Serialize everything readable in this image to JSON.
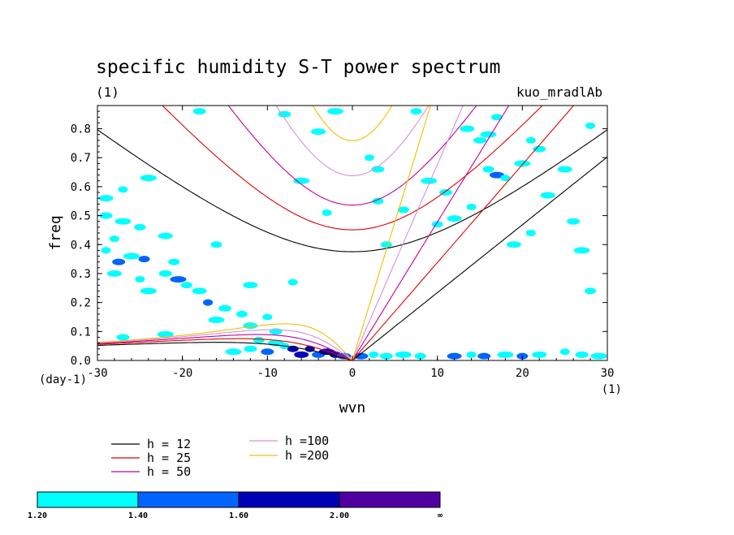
{
  "chart_data": {
    "type": "contour",
    "title": "specific humidity S-T power spectrum",
    "subtitle_left": "(1)",
    "subtitle_right": "kuo_mradlAb",
    "xlabel": "wvn",
    "ylabel": "freq",
    "x_unit": "(1)",
    "y_unit": "(day-1)",
    "xlim": [
      -30,
      30
    ],
    "ylim": [
      0,
      0.88
    ],
    "x_ticks": [
      -30,
      -20,
      -10,
      0,
      10,
      20,
      30
    ],
    "y_ticks": [
      "0.0",
      "0.1",
      "0.2",
      "0.3",
      "0.4",
      "0.5",
      "0.6",
      "0.7",
      "0.8"
    ],
    "dispersion_curves": [
      {
        "label": "h = 12",
        "h": 12,
        "color": "#000000"
      },
      {
        "label": "h = 25",
        "h": 25,
        "color": "#e00000"
      },
      {
        "label": "h = 50",
        "h": 50,
        "color": "#c000a0"
      },
      {
        "label": "h =100",
        "h": 100,
        "color": "#d890e0"
      },
      {
        "label": "h =200",
        "h": 200,
        "color": "#f0c000"
      }
    ],
    "contour_levels": {
      "labels": [
        "1.20",
        "1.40",
        "1.60",
        "2.00",
        "∞"
      ],
      "colors": [
        "#00ffff",
        "#0064ff",
        "#0000b4",
        "#5000a0"
      ]
    },
    "shaded_regions": [
      {
        "x": -29,
        "y": 0.38,
        "level": 0
      },
      {
        "x": -27.5,
        "y": 0.34,
        "level": 1
      },
      {
        "x": -26,
        "y": 0.36,
        "level": 0
      },
      {
        "x": -24.5,
        "y": 0.35,
        "level": 1
      },
      {
        "x": -28,
        "y": 0.3,
        "level": 0
      },
      {
        "x": -25,
        "y": 0.28,
        "level": 0
      },
      {
        "x": -22,
        "y": 0.3,
        "level": 0
      },
      {
        "x": -20.5,
        "y": 0.28,
        "level": 1
      },
      {
        "x": -19.5,
        "y": 0.26,
        "level": 0
      },
      {
        "x": -18,
        "y": 0.24,
        "level": 0
      },
      {
        "x": -17,
        "y": 0.2,
        "level": 1
      },
      {
        "x": -15,
        "y": 0.18,
        "level": 0
      },
      {
        "x": -16,
        "y": 0.14,
        "level": 0
      },
      {
        "x": -13,
        "y": 0.16,
        "level": 0
      },
      {
        "x": -12,
        "y": 0.12,
        "level": 0
      },
      {
        "x": -10,
        "y": 0.15,
        "level": 0
      },
      {
        "x": -9,
        "y": 0.1,
        "level": 0
      },
      {
        "x": -24,
        "y": 0.24,
        "level": 0
      },
      {
        "x": -21,
        "y": 0.34,
        "level": 0
      },
      {
        "x": -29,
        "y": 0.56,
        "level": 0
      },
      {
        "x": -27,
        "y": 0.59,
        "level": 0
      },
      {
        "x": -29,
        "y": 0.5,
        "level": 0
      },
      {
        "x": -27,
        "y": 0.48,
        "level": 0
      },
      {
        "x": -25,
        "y": 0.46,
        "level": 0
      },
      {
        "x": -22,
        "y": 0.43,
        "level": 0
      },
      {
        "x": -28,
        "y": 0.42,
        "level": 0
      },
      {
        "x": -10,
        "y": 0.03,
        "level": 1
      },
      {
        "x": -9,
        "y": 0.06,
        "level": 0
      },
      {
        "x": -7,
        "y": 0.04,
        "level": 2
      },
      {
        "x": -6,
        "y": 0.02,
        "level": 2
      },
      {
        "x": -5,
        "y": 0.04,
        "level": 2
      },
      {
        "x": -4,
        "y": 0.02,
        "level": 1
      },
      {
        "x": -3,
        "y": 0.03,
        "level": 2
      },
      {
        "x": -2,
        "y": 0.02,
        "level": 2
      },
      {
        "x": -1,
        "y": 0.015,
        "level": 1
      },
      {
        "x": -8,
        "y": 0.05,
        "level": 0
      },
      {
        "x": -12,
        "y": 0.04,
        "level": 0
      },
      {
        "x": -14,
        "y": 0.03,
        "level": 0
      },
      {
        "x": -11,
        "y": 0.07,
        "level": 0
      },
      {
        "x": 1,
        "y": 0.015,
        "level": 1
      },
      {
        "x": 2.5,
        "y": 0.02,
        "level": 0
      },
      {
        "x": 4,
        "y": 0.015,
        "level": 0
      },
      {
        "x": 6,
        "y": 0.02,
        "level": 0
      },
      {
        "x": 8,
        "y": 0.015,
        "level": 0
      },
      {
        "x": 12,
        "y": 0.015,
        "level": 1
      },
      {
        "x": 14,
        "y": 0.02,
        "level": 0
      },
      {
        "x": 15.5,
        "y": 0.015,
        "level": 1
      },
      {
        "x": 18,
        "y": 0.02,
        "level": 0
      },
      {
        "x": 20,
        "y": 0.015,
        "level": 1
      },
      {
        "x": 22,
        "y": 0.02,
        "level": 0
      },
      {
        "x": 25,
        "y": 0.03,
        "level": 0
      },
      {
        "x": 27,
        "y": 0.02,
        "level": 0
      },
      {
        "x": 29,
        "y": 0.015,
        "level": 0
      },
      {
        "x": 16,
        "y": 0.66,
        "level": 0
      },
      {
        "x": 17,
        "y": 0.64,
        "level": 1
      },
      {
        "x": 18,
        "y": 0.63,
        "level": 0
      },
      {
        "x": 15,
        "y": 0.76,
        "level": 0
      },
      {
        "x": 16,
        "y": 0.78,
        "level": 0
      },
      {
        "x": 17,
        "y": 0.84,
        "level": 0
      },
      {
        "x": 13.5,
        "y": 0.8,
        "level": 0
      },
      {
        "x": 21,
        "y": 0.76,
        "level": 0
      },
      {
        "x": 22,
        "y": 0.73,
        "level": 0
      },
      {
        "x": 20,
        "y": 0.68,
        "level": 0
      },
      {
        "x": 10,
        "y": 0.47,
        "level": 0
      },
      {
        "x": 12,
        "y": 0.49,
        "level": 0
      },
      {
        "x": 14,
        "y": 0.53,
        "level": 0
      },
      {
        "x": 11,
        "y": 0.58,
        "level": 0
      },
      {
        "x": 9,
        "y": 0.62,
        "level": 0
      },
      {
        "x": 6,
        "y": 0.52,
        "level": 0
      },
      {
        "x": 19,
        "y": 0.4,
        "level": 0
      },
      {
        "x": 21,
        "y": 0.44,
        "level": 0
      },
      {
        "x": 26,
        "y": 0.48,
        "level": 0
      },
      {
        "x": 27,
        "y": 0.38,
        "level": 0
      },
      {
        "x": 28,
        "y": 0.24,
        "level": 0
      },
      {
        "x": 25,
        "y": 0.66,
        "level": 0
      },
      {
        "x": 28,
        "y": 0.81,
        "level": 0
      },
      {
        "x": -8,
        "y": 0.85,
        "level": 0
      },
      {
        "x": -2,
        "y": 0.86,
        "level": 0
      },
      {
        "x": 7.5,
        "y": 0.86,
        "level": 0
      },
      {
        "x": -4,
        "y": 0.79,
        "level": 0
      },
      {
        "x": 2,
        "y": 0.7,
        "level": 0
      },
      {
        "x": 3,
        "y": 0.66,
        "level": 0
      },
      {
        "x": -6,
        "y": 0.62,
        "level": 0
      },
      {
        "x": -16,
        "y": 0.4,
        "level": 0
      },
      {
        "x": -12,
        "y": 0.26,
        "level": 0
      },
      {
        "x": -7,
        "y": 0.27,
        "level": 0
      },
      {
        "x": -18,
        "y": 0.86,
        "level": 0
      },
      {
        "x": -24,
        "y": 0.63,
        "level": 0
      },
      {
        "x": 4,
        "y": 0.4,
        "level": 0
      },
      {
        "x": 23,
        "y": 0.57,
        "level": 0
      },
      {
        "x": -3,
        "y": 0.51,
        "level": 0
      },
      {
        "x": -27,
        "y": 0.08,
        "level": 0
      },
      {
        "x": -22,
        "y": 0.09,
        "level": 0
      },
      {
        "x": 3,
        "y": 0.55,
        "level": 0
      }
    ]
  }
}
